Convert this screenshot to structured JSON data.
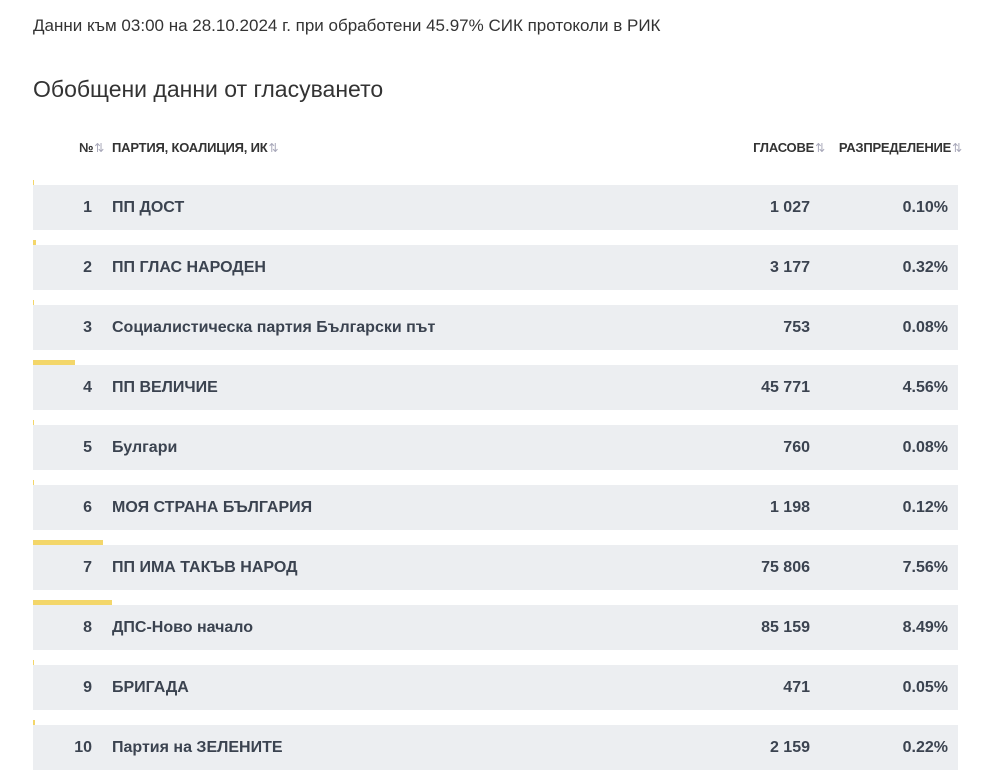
{
  "header": {
    "status": "Данни към 03:00 на 28.10.2024 г. при обработени 45.97% СИК протоколи в РИК",
    "title": "Обобщени данни от гласуването"
  },
  "table": {
    "columns": [
      "№",
      "ПАРТИЯ, КОАЛИЦИЯ, ИК",
      "ГЛАСОВЕ",
      "РАЗПРЕДЕЛЕНИЕ"
    ],
    "rows": [
      {
        "no": 1,
        "party": "ПП ДОСТ",
        "votes": "1 027",
        "share": {
          "value": 0.1,
          "label": "0.10%"
        }
      },
      {
        "no": 2,
        "party": "ПП ГЛАС НАРОДЕН",
        "votes": "3 177",
        "share": {
          "value": 0.32,
          "label": "0.32%"
        }
      },
      {
        "no": 3,
        "party": "Социалистическа партия Български път",
        "votes": "753",
        "share": {
          "value": 0.08,
          "label": "0.08%"
        }
      },
      {
        "no": 4,
        "party": "ПП ВЕЛИЧИЕ",
        "votes": "45 771",
        "share": {
          "value": 4.56,
          "label": "4.56%"
        }
      },
      {
        "no": 5,
        "party": "Булгари",
        "votes": "760",
        "share": {
          "value": 0.08,
          "label": "0.08%"
        }
      },
      {
        "no": 6,
        "party": "МОЯ СТРАНА БЪЛГАРИЯ",
        "votes": "1 198",
        "share": {
          "value": 0.12,
          "label": "0.12%"
        }
      },
      {
        "no": 7,
        "party": "ПП ИМА ТАКЪВ НАРОД",
        "votes": "75 806",
        "share": {
          "value": 7.56,
          "label": "7.56%"
        }
      },
      {
        "no": 8,
        "party": "ДПС-Ново начало",
        "votes": "85 159",
        "share": {
          "value": 8.49,
          "label": "8.49%"
        }
      },
      {
        "no": 9,
        "party": "БРИГАДА",
        "votes": "471",
        "share": {
          "value": 0.05,
          "label": "0.05%"
        }
      },
      {
        "no": 10,
        "party": "Партия на ЗЕЛЕНИТЕ",
        "votes": "2 159",
        "share": {
          "value": 0.22,
          "label": "0.22%"
        }
      }
    ]
  }
}
